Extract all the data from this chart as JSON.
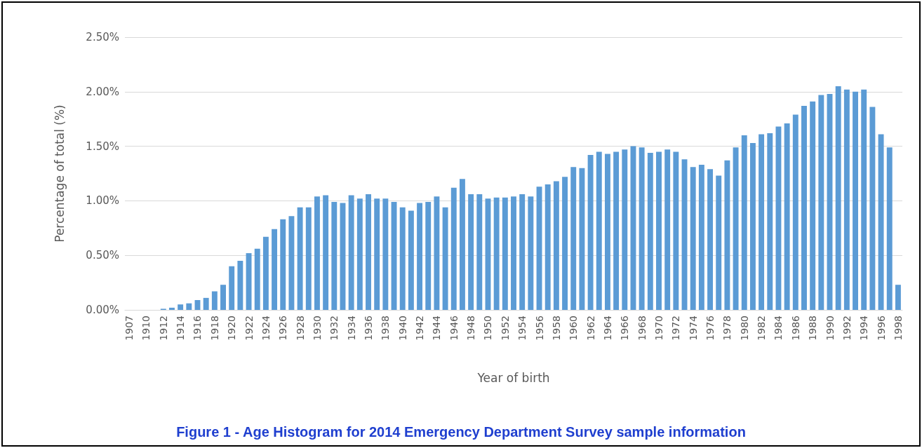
{
  "chart_data": {
    "type": "bar",
    "title": "Figure 1 - Age Histogram for 2014 Emergency Department Survey sample information",
    "xlabel": "Year of birth",
    "ylabel": "Percentage of total (%)",
    "categories": [
      "1907",
      null,
      "1910",
      null,
      "1912",
      null,
      "1914",
      null,
      "1916",
      null,
      "1918",
      null,
      "1920",
      null,
      "1922",
      null,
      "1924",
      null,
      "1926",
      null,
      "1928",
      null,
      "1930",
      null,
      "1932",
      null,
      "1934",
      null,
      "1936",
      null,
      "1938",
      null,
      "1940",
      null,
      "1942",
      null,
      "1944",
      null,
      "1946",
      null,
      "1948",
      null,
      "1950",
      null,
      "1952",
      null,
      "1954",
      null,
      "1956",
      null,
      "1958",
      null,
      "1960",
      null,
      "1962",
      null,
      "1964",
      null,
      "1966",
      null,
      "1968",
      null,
      "1970",
      null,
      "1972",
      null,
      "1974",
      null,
      "1976",
      null,
      "1978",
      null,
      "1980",
      null,
      "1982",
      null,
      "1984",
      null,
      "1986",
      null,
      "1988",
      null,
      "1990",
      null,
      "1992",
      null,
      "1994",
      null,
      "1996",
      null,
      "1998"
    ],
    "values": [
      0,
      0,
      0,
      0,
      0.01,
      0.02,
      0.05,
      0.06,
      0.09,
      0.11,
      0.17,
      0.23,
      0.4,
      0.45,
      0.52,
      0.56,
      0.67,
      0.74,
      0.83,
      0.86,
      0.94,
      0.94,
      1.04,
      1.05,
      0.99,
      0.98,
      1.05,
      1.02,
      1.06,
      1.02,
      1.02,
      0.99,
      0.94,
      0.91,
      0.98,
      0.99,
      1.04,
      0.94,
      1.12,
      1.2,
      1.06,
      1.06,
      1.02,
      1.03,
      1.03,
      1.04,
      1.06,
      1.04,
      1.13,
      1.15,
      1.18,
      1.22,
      1.31,
      1.3,
      1.42,
      1.45,
      1.43,
      1.45,
      1.47,
      1.5,
      1.49,
      1.44,
      1.45,
      1.47,
      1.45,
      1.38,
      1.31,
      1.33,
      1.29,
      1.23,
      1.37,
      1.49,
      1.6,
      1.53,
      1.61,
      1.62,
      1.68,
      1.71,
      1.79,
      1.87,
      1.91,
      1.97,
      1.98,
      2.05,
      2.02,
      2.0,
      2.02,
      1.86,
      1.61,
      1.49,
      0.23
    ],
    "color": "#5b9bd5",
    "ylim": [
      0,
      2.5
    ],
    "yticks": [
      {
        "value": 0,
        "label": "0.00%"
      },
      {
        "value": 0.5,
        "label": "0.50%"
      },
      {
        "value": 1,
        "label": "1.00%"
      },
      {
        "value": 1.5,
        "label": "1.50%"
      },
      {
        "value": 2,
        "label": "2.00%"
      },
      {
        "value": 2.5,
        "label": "2.50%"
      }
    ],
    "grid": "y"
  }
}
